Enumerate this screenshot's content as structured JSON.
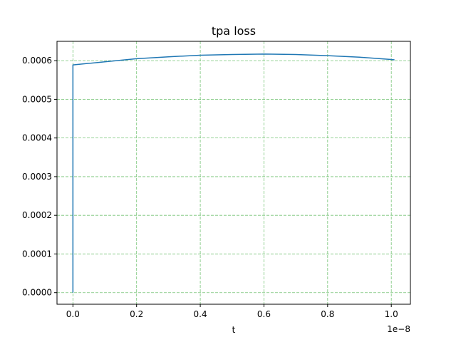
{
  "chart_data": {
    "type": "line",
    "title": "tpa loss",
    "xlabel": "t",
    "ylabel": "",
    "x_offset_text": "1e−8",
    "xlim": [
      -0.05,
      1.06
    ],
    "ylim": [
      -3e-05,
      0.00065
    ],
    "xticks": [
      0.0,
      0.2,
      0.4,
      0.6,
      0.8,
      1.0
    ],
    "xtick_labels": [
      "0.0",
      "0.2",
      "0.4",
      "0.6",
      "0.8",
      "1.0"
    ],
    "yticks": [
      0.0,
      0.0001,
      0.0002,
      0.0003,
      0.0004,
      0.0005,
      0.0006
    ],
    "ytick_labels": [
      "0.0000",
      "0.0001",
      "0.0002",
      "0.0003",
      "0.0004",
      "0.0005",
      "0.0006"
    ],
    "grid": true,
    "legend": "none",
    "colors": {
      "line": "#1f77b4",
      "grid": "#5cb85c"
    },
    "series": [
      {
        "x": [
          0.0,
          0.0,
          0.0,
          0.05,
          0.1,
          0.2,
          0.3,
          0.4,
          0.5,
          0.6,
          0.7,
          0.8,
          0.9,
          1.0,
          1.01
        ],
        "y": [
          0.0,
          0.0003,
          0.000589,
          0.000593,
          0.000597,
          0.000605,
          0.00061,
          0.000614,
          0.000616,
          0.000617,
          0.000616,
          0.000613,
          0.000609,
          0.000603,
          0.000602
        ]
      }
    ]
  }
}
